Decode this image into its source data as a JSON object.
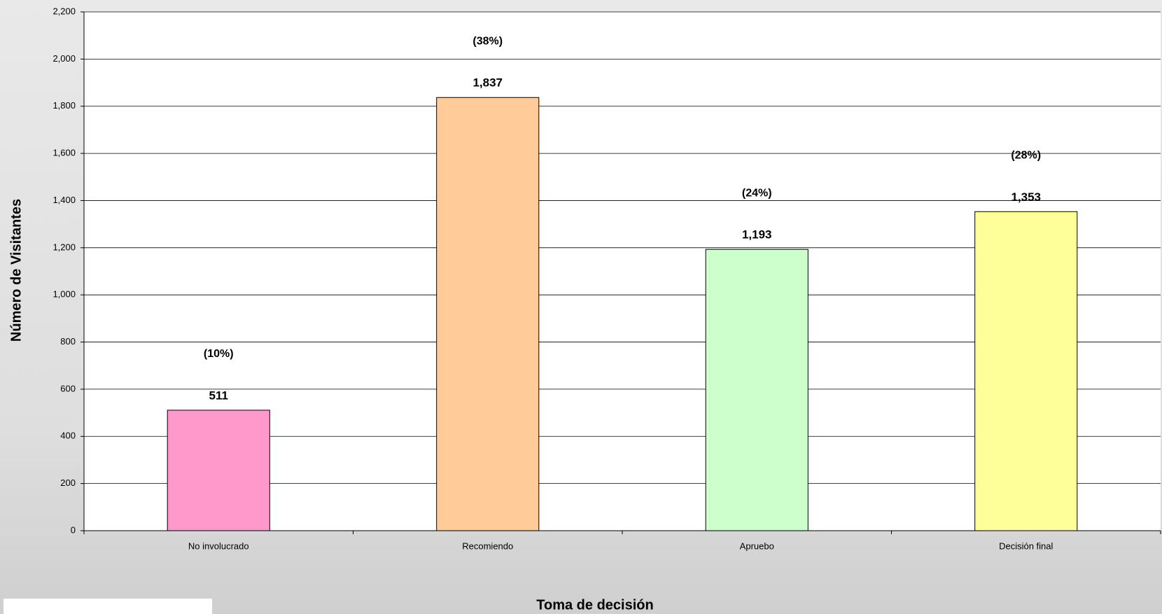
{
  "chart_data": {
    "type": "bar",
    "x_label": "Toma de decisión",
    "y_label": "Número de Visitantes",
    "categories": [
      "No involucrado",
      "Recomiendo",
      "Apruebo",
      "Decisión final"
    ],
    "values": [
      511,
      1837,
      1193,
      1353
    ],
    "value_labels": [
      "511",
      "1,837",
      "1,193",
      "1,353"
    ],
    "share_labels": [
      "(10%)",
      "(38%)",
      "(24%)",
      "(28%)"
    ],
    "colors": [
      "#ff99cc",
      "#ffcc99",
      "#ccffcc",
      "#ffff99"
    ],
    "ylim": [
      0,
      2200
    ],
    "yticks": [
      0,
      200,
      400,
      600,
      800,
      {
        "value": 1000,
        "label": "1,000"
      },
      {
        "value": 1200,
        "label": "1,200"
      },
      {
        "value": 1400,
        "label": "1,400"
      },
      {
        "value": 1600,
        "label": "1,600"
      },
      {
        "value": 1800,
        "label": "1,800"
      },
      {
        "value": 2000,
        "label": "2,000"
      },
      {
        "value": 2200,
        "label": "2,200"
      }
    ],
    "grid": true
  }
}
